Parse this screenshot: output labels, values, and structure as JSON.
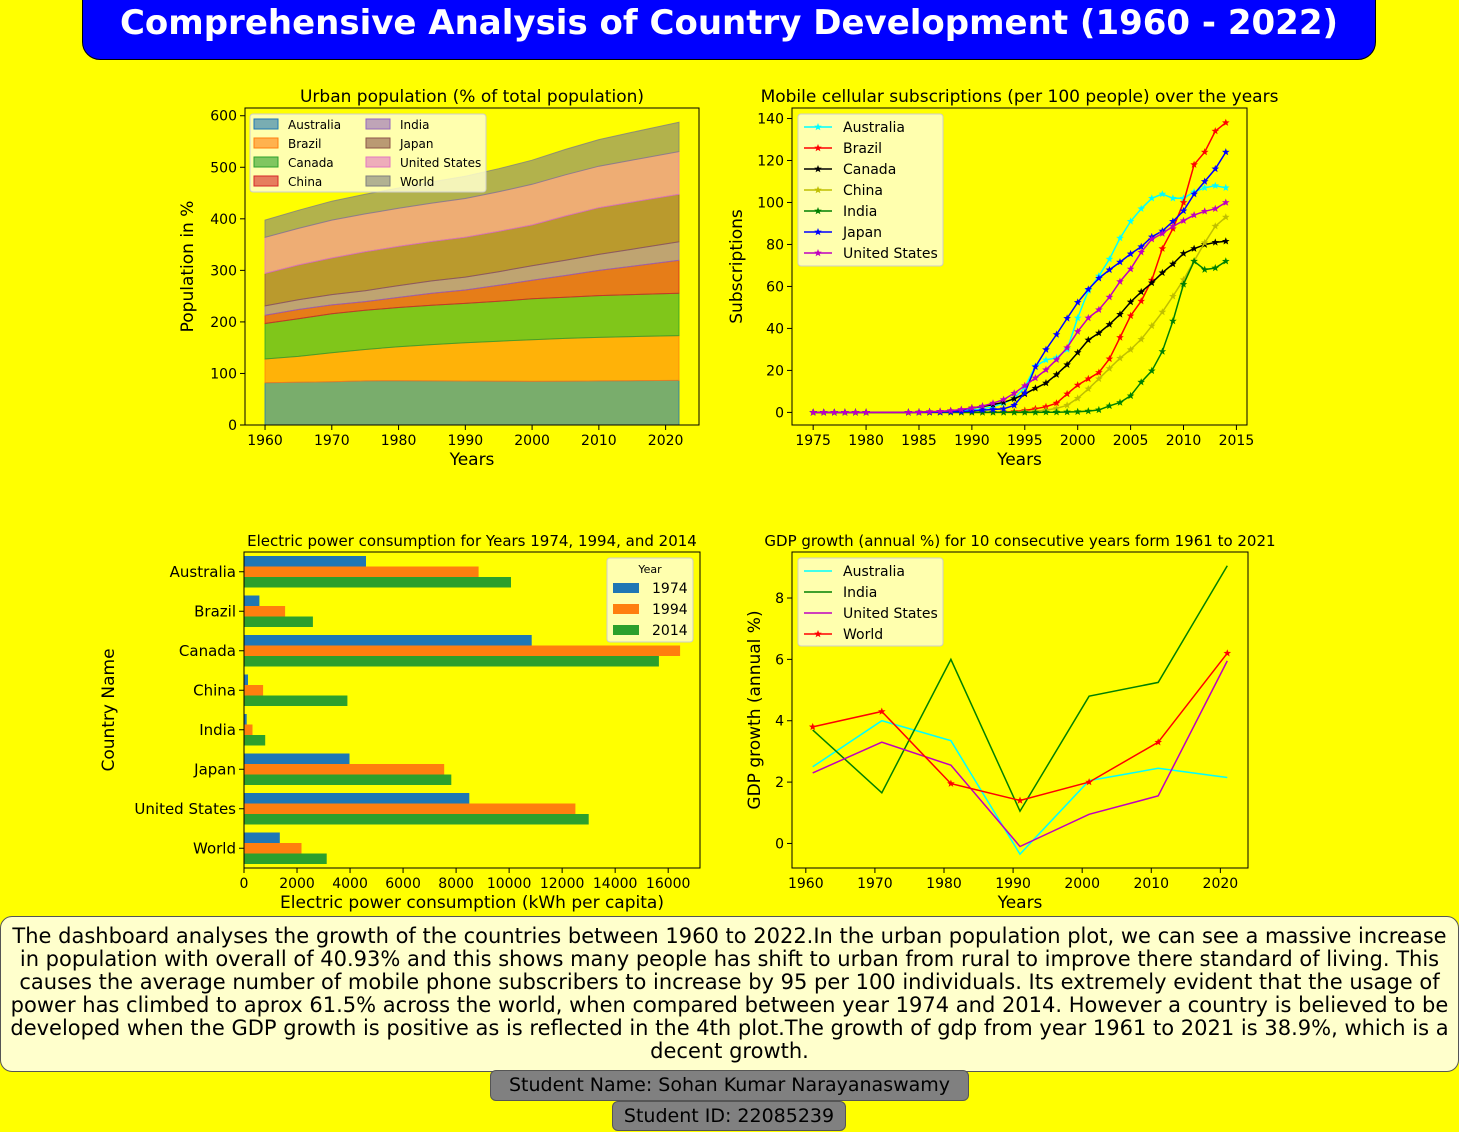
{
  "title": "Comprehensive Analysis of Country Development (1960 - 2022)",
  "summary": "The dashboard analyses the growth of the countries between 1960  to 2022.In the urban population plot, we can see a massive increase in   population with overall of 40.93% and this shows many people has shift to  urban from rural to improve there standard of living. This causes the average   number of mobile phone subscribers to increase by 95 per 100 individuals. Its extremely evident that the usage of power has climbed to aprox 61.5% across  the world, when compared between year 1974 and 2014. However a country is   believed to be developed when the GDP growth is positive as is reflected in   the 4th plot.The growth of gdp from year 1961 to 2021 is 38.9%, which is a  decent growth.",
  "student_name": "Student Name: Sohan Kumar Narayanaswamy",
  "student_id": "Student ID: 22085239",
  "chart_data": [
    {
      "type": "area",
      "stacked": true,
      "title": "Urban population (% of total population)",
      "xlabel": "Years",
      "ylabel": "Population in %",
      "xlim": [
        1957,
        2025
      ],
      "ylim": [
        0,
        615
      ],
      "xticks": [
        1960,
        1970,
        1980,
        1990,
        2000,
        2010,
        2020
      ],
      "yticks": [
        0,
        100,
        200,
        300,
        400,
        500,
        600
      ],
      "legend_position": "top-left",
      "legend_columns": 2,
      "x": [
        1960,
        1965,
        1970,
        1975,
        1980,
        1985,
        1990,
        1995,
        2000,
        2005,
        2010,
        2015,
        2022
      ],
      "series": [
        {
          "name": "Australia",
          "color": "#1f77b4",
          "values": [
            82,
            83,
            84,
            85.5,
            86,
            85.5,
            85.4,
            85,
            84.5,
            85,
            85.5,
            86,
            86.5
          ]
        },
        {
          "name": "Brazil",
          "color": "#ff7f0e",
          "values": [
            46,
            50,
            56,
            61,
            66,
            70.5,
            74,
            77.5,
            81,
            83,
            84.5,
            85.5,
            87
          ]
        },
        {
          "name": "Canada",
          "color": "#2ca02c",
          "values": [
            69,
            73,
            76,
            76,
            76,
            76.5,
            76.5,
            77.5,
            79.5,
            80,
            81,
            81.5,
            82
          ]
        },
        {
          "name": "China",
          "color": "#d62728",
          "values": [
            16,
            18,
            17,
            17,
            19.5,
            23,
            26,
            31,
            36,
            42,
            49,
            55,
            64
          ]
        },
        {
          "name": "India",
          "color": "#9467bd",
          "values": [
            18,
            19,
            20,
            21,
            23,
            24,
            25,
            26.5,
            28,
            29.5,
            31,
            33,
            36
          ]
        },
        {
          "name": "Japan",
          "color": "#8c564b",
          "values": [
            63,
            67.5,
            71,
            75.5,
            76,
            76.5,
            77.5,
            78,
            79,
            86,
            90.5,
            91.5,
            92
          ]
        },
        {
          "name": "United States",
          "color": "#e377c2",
          "values": [
            70,
            71,
            73.5,
            73.6,
            74,
            74.5,
            75,
            77,
            79,
            80,
            80.5,
            81.5,
            83
          ]
        },
        {
          "name": "World",
          "color": "#7f7f7f",
          "values": [
            33.5,
            35,
            36.6,
            38,
            39.3,
            41.2,
            43,
            44.8,
            46.7,
            49.1,
            51.6,
            53.9,
            57
          ]
        }
      ]
    },
    {
      "type": "line",
      "title": "Mobile cellular subscriptions (per 100 people) over the years",
      "xlabel": "Years",
      "ylabel": "Subscriptions",
      "xlim": [
        1973,
        2016
      ],
      "ylim": [
        -6,
        145
      ],
      "xticks": [
        1975,
        1980,
        1985,
        1990,
        1995,
        2000,
        2005,
        2010,
        2015
      ],
      "yticks": [
        0,
        20,
        40,
        60,
        80,
        100,
        120,
        140
      ],
      "marker": "star",
      "legend_position": "top-left",
      "x": [
        1975,
        1976,
        1977,
        1978,
        1979,
        1980,
        1984,
        1985,
        1986,
        1987,
        1988,
        1989,
        1990,
        1991,
        1992,
        1993,
        1994,
        1995,
        1996,
        1997,
        1998,
        1999,
        2000,
        2001,
        2002,
        2003,
        2004,
        2005,
        2006,
        2007,
        2008,
        2009,
        2010,
        2011,
        2012,
        2013,
        2014
      ],
      "series": [
        {
          "name": "Australia",
          "color": "#00ffff",
          "values": [
            0,
            0,
            0,
            0,
            0,
            0,
            0,
            0.1,
            0.2,
            0.3,
            0.5,
            0.9,
            1.1,
            1.7,
            2.7,
            4.4,
            6.6,
            12,
            22,
            25,
            26,
            30,
            45,
            58,
            65,
            73,
            83,
            91,
            97,
            102,
            104,
            102,
            102,
            105,
            107,
            108,
            107
          ]
        },
        {
          "name": "Brazil",
          "color": "#ff0000",
          "values": [
            0,
            0,
            0,
            0,
            0,
            0,
            0,
            0,
            0,
            0,
            0,
            0,
            0,
            0,
            0.1,
            0.2,
            0.4,
            0.9,
            1.7,
            2.7,
            4.4,
            8.8,
            13,
            16,
            19,
            25.5,
            35.7,
            46,
            53,
            63,
            78,
            87.5,
            100,
            118,
            124,
            134,
            138
          ]
        },
        {
          "name": "Canada",
          "color": "#000000",
          "values": [
            0,
            0,
            0,
            0,
            0,
            0,
            0,
            0.1,
            0.3,
            0.4,
            0.8,
            1.2,
            2.1,
            2.8,
            3.7,
            4.8,
            6.5,
            8.8,
            11.5,
            14,
            18,
            22.7,
            28.5,
            34.5,
            37.8,
            41.9,
            46.7,
            52.6,
            57.4,
            61.7,
            66.5,
            70.7,
            75.7,
            78,
            79.9,
            81,
            81.5
          ]
        },
        {
          "name": "China",
          "color": "#bfbf00",
          "values": [
            0,
            0,
            0,
            0,
            0,
            0,
            0,
            0,
            0,
            0,
            0,
            0,
            0,
            0,
            0,
            0.1,
            0.1,
            0.3,
            0.6,
            1.1,
            1.9,
            3.4,
            6.7,
            11.2,
            16,
            20.9,
            25.8,
            29.9,
            34.8,
            41.2,
            47.8,
            55.3,
            63.2,
            72.1,
            80.8,
            88.7,
            93
          ]
        },
        {
          "name": "India",
          "color": "#008000",
          "values": [
            0,
            0,
            0,
            0,
            0,
            0,
            0,
            0,
            0,
            0,
            0,
            0,
            0,
            0,
            0,
            0,
            0,
            0,
            0,
            0.1,
            0.1,
            0.2,
            0.3,
            0.6,
            1.2,
            3.1,
            4.7,
            7.9,
            14.4,
            19.8,
            29,
            43.5,
            61,
            72,
            68,
            68.8,
            72
          ]
        },
        {
          "name": "Japan",
          "color": "#0000ff",
          "values": [
            0,
            0,
            0,
            0,
            0,
            0,
            0,
            0,
            0.1,
            0.2,
            0.3,
            0.4,
            0.7,
            1.1,
            1.4,
            1.7,
            3.4,
            9.3,
            21.7,
            29.9,
            37.1,
            44.8,
            52.4,
            58.6,
            63.9,
            67.9,
            71.6,
            75.5,
            78.9,
            83.6,
            86.4,
            91,
            96,
            104,
            110,
            116,
            124
          ]
        },
        {
          "name": "United States",
          "color": "#bf00bf",
          "values": [
            0,
            0,
            0,
            0,
            0,
            0,
            0,
            0.1,
            0.3,
            0.5,
            0.8,
            1.4,
            2.1,
            3,
            4.4,
            6.1,
            9.1,
            12.7,
            16.4,
            20.3,
            25.1,
            30.8,
            38.5,
            45,
            48.9,
            54.9,
            62.3,
            68.3,
            76.3,
            82.5,
            85.2,
            88.6,
            91.3,
            94,
            95.8,
            97,
            100
          ]
        }
      ]
    },
    {
      "type": "bar",
      "orientation": "horizontal",
      "title": "Electric power consumption for Years 1974, 1994, and 2014",
      "xlabel": "Electric power consumption (kWh per capita)",
      "ylabel": "Country Name",
      "xlim": [
        0,
        17200
      ],
      "xticks": [
        0,
        2000,
        4000,
        6000,
        8000,
        10000,
        12000,
        14000,
        16000
      ],
      "legend_title": "Year",
      "legend_position": "top-right",
      "categories": [
        "Australia",
        "Brazil",
        "Canada",
        "China",
        "India",
        "Japan",
        "United States",
        "World"
      ],
      "series": [
        {
          "name": "1974",
          "color": "#1f77b4",
          "values": [
            4600,
            580,
            10850,
            150,
            100,
            3980,
            8500,
            1350
          ]
        },
        {
          "name": "1994",
          "color": "#ff7f0e",
          "values": [
            8850,
            1550,
            16450,
            720,
            320,
            7550,
            12500,
            2170
          ]
        },
        {
          "name": "2014",
          "color": "#2ca02c",
          "values": [
            10070,
            2600,
            15650,
            3900,
            800,
            7820,
            13000,
            3120
          ]
        }
      ]
    },
    {
      "type": "line",
      "title": "GDP growth (annual %) for 10 consecutive years form 1961 to 2021",
      "xlabel": "Years",
      "ylabel": "GDP growth (annual %)",
      "xlim": [
        1958,
        2024
      ],
      "ylim": [
        -0.8,
        9.5
      ],
      "xticks": [
        1960,
        1970,
        1980,
        1990,
        2000,
        2010,
        2020
      ],
      "yticks": [
        0,
        2,
        4,
        6,
        8
      ],
      "legend_position": "top-left",
      "x": [
        1961,
        1971,
        1981,
        1991,
        2001,
        2011,
        2021
      ],
      "series": [
        {
          "name": "Australia",
          "color": "#00ffff",
          "marker": "none",
          "values": [
            2.5,
            4.0,
            3.35,
            -0.35,
            2.05,
            2.45,
            2.15
          ]
        },
        {
          "name": "India",
          "color": "#008000",
          "marker": "none",
          "values": [
            3.7,
            1.65,
            6.0,
            1.05,
            4.8,
            5.25,
            9.05
          ]
        },
        {
          "name": "United States",
          "color": "#bf00bf",
          "marker": "none",
          "values": [
            2.3,
            3.3,
            2.55,
            -0.1,
            0.95,
            1.55,
            5.95
          ]
        },
        {
          "name": "World",
          "color": "#ff0000",
          "marker": "star",
          "values": [
            3.8,
            4.3,
            1.95,
            1.4,
            2.0,
            3.3,
            6.2
          ]
        }
      ]
    }
  ]
}
